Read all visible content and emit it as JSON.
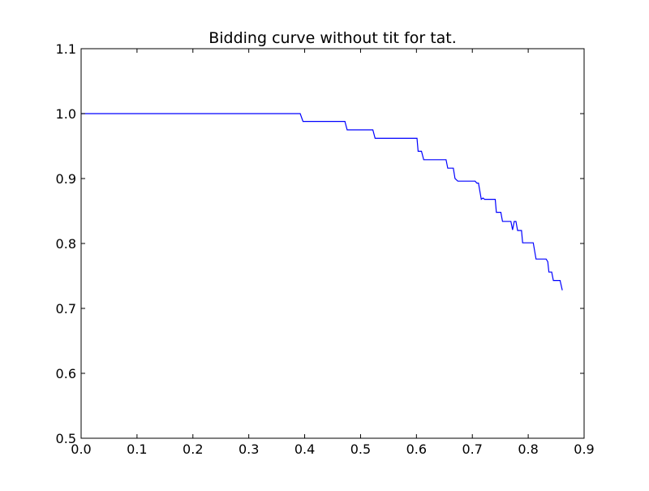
{
  "chart_data": {
    "type": "line",
    "title": "Bidding curve without tit for tat.",
    "xlabel": "",
    "ylabel": "",
    "xlim": [
      0.0,
      0.9
    ],
    "ylim": [
      0.5,
      1.1
    ],
    "grid": false,
    "xticks": [
      "0.0",
      "0.1",
      "0.2",
      "0.3",
      "0.4",
      "0.5",
      "0.6",
      "0.7",
      "0.8",
      "0.9"
    ],
    "yticks": [
      "0.5",
      "0.6",
      "0.7",
      "0.8",
      "0.9",
      "1.0",
      "1.1"
    ],
    "series": [
      {
        "color": "#0000ff",
        "points": [
          [
            0.0,
            1.0
          ],
          [
            0.392,
            1.0
          ],
          [
            0.397,
            0.988
          ],
          [
            0.472,
            0.988
          ],
          [
            0.476,
            0.975
          ],
          [
            0.522,
            0.975
          ],
          [
            0.526,
            0.962
          ],
          [
            0.601,
            0.962
          ],
          [
            0.603,
            0.942
          ],
          [
            0.609,
            0.942
          ],
          [
            0.613,
            0.929
          ],
          [
            0.653,
            0.929
          ],
          [
            0.656,
            0.916
          ],
          [
            0.666,
            0.916
          ],
          [
            0.669,
            0.9
          ],
          [
            0.674,
            0.896
          ],
          [
            0.705,
            0.896
          ],
          [
            0.708,
            0.893
          ],
          [
            0.711,
            0.893
          ],
          [
            0.716,
            0.868
          ],
          [
            0.719,
            0.87
          ],
          [
            0.722,
            0.868
          ],
          [
            0.741,
            0.868
          ],
          [
            0.743,
            0.848
          ],
          [
            0.751,
            0.848
          ],
          [
            0.754,
            0.834
          ],
          [
            0.769,
            0.834
          ],
          [
            0.772,
            0.821
          ],
          [
            0.775,
            0.834
          ],
          [
            0.778,
            0.834
          ],
          [
            0.781,
            0.82
          ],
          [
            0.788,
            0.82
          ],
          [
            0.79,
            0.801
          ],
          [
            0.809,
            0.801
          ],
          [
            0.814,
            0.776
          ],
          [
            0.832,
            0.776
          ],
          [
            0.835,
            0.772
          ],
          [
            0.837,
            0.756
          ],
          [
            0.842,
            0.756
          ],
          [
            0.845,
            0.743
          ],
          [
            0.857,
            0.743
          ],
          [
            0.861,
            0.728
          ]
        ]
      }
    ]
  }
}
